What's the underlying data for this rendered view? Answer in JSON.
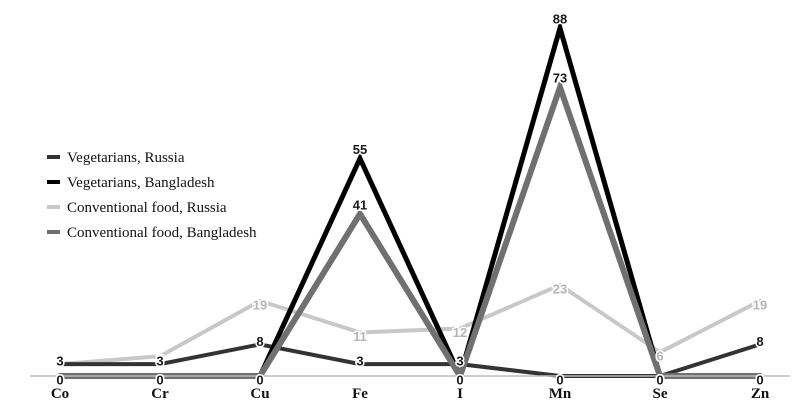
{
  "chart_data": {
    "type": "line",
    "title": "",
    "xlabel": "",
    "ylabel": "",
    "categories": [
      "Co",
      "Cr",
      "Cu",
      "Fe",
      "I",
      "Mn",
      "Se",
      "Zn"
    ],
    "ylim": [
      0,
      88
    ],
    "grid": false,
    "legend_position": "left",
    "series": [
      {
        "name": "Vegetarians, Russia",
        "color": "#333333",
        "values": [
          3,
          3,
          8,
          3,
          3,
          0,
          0,
          8
        ],
        "labels": [
          "3",
          "3",
          "8",
          "3",
          "3",
          "0",
          "0",
          "8"
        ]
      },
      {
        "name": "Vegetarians, Bangladesh",
        "color": "#000000",
        "values": [
          0,
          0,
          0,
          55,
          0,
          88,
          0,
          0
        ],
        "labels": [
          "0",
          "0",
          "0",
          "55",
          "0",
          "88",
          "0",
          "0"
        ]
      },
      {
        "name": "Conventional food, Russia",
        "color": "#c8c8c8",
        "values": [
          3,
          5,
          19,
          11,
          12,
          23,
          6,
          19
        ],
        "labels": [
          "3",
          "5",
          "19",
          "11",
          "12",
          "23",
          "6",
          "19"
        ]
      },
      {
        "name": "Conventional food, Bangladesh",
        "color": "#707070",
        "values": [
          0,
          0,
          0,
          41,
          0,
          73,
          0,
          0
        ],
        "labels": [
          "0",
          "0",
          "0",
          "41",
          "0",
          "73",
          "0",
          "0"
        ]
      }
    ]
  }
}
